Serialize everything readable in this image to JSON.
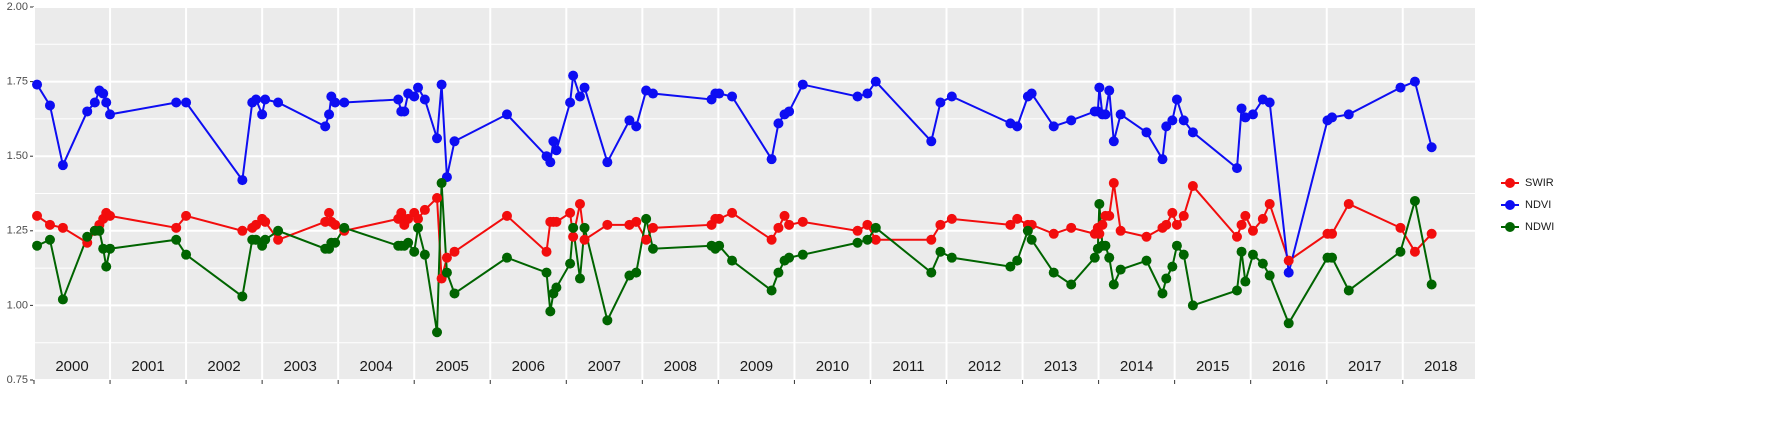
{
  "chart_data": {
    "type": "line",
    "x": [
      2000.04,
      2000.21,
      2000.38,
      2000.7,
      2000.8,
      2000.86,
      2000.91,
      2000.95,
      2001.0,
      2001.87,
      2002.0,
      2002.74,
      2002.87,
      2002.92,
      2003.0,
      2003.04,
      2003.21,
      2003.83,
      2003.88,
      2003.91,
      2003.96,
      2004.08,
      2004.79,
      2004.83,
      2004.87,
      2004.92,
      2005.0,
      2005.05,
      2005.14,
      2005.3,
      2005.36,
      2005.43,
      2005.53,
      2006.22,
      2006.74,
      2006.79,
      2006.83,
      2006.87,
      2007.05,
      2007.09,
      2007.18,
      2007.24,
      2007.54,
      2007.83,
      2007.92,
      2008.05,
      2008.14,
      2008.91,
      2008.96,
      2009.01,
      2009.18,
      2009.7,
      2009.79,
      2009.87,
      2009.93,
      2010.11,
      2010.83,
      2010.96,
      2011.07,
      2011.8,
      2011.92,
      2012.07,
      2012.84,
      2012.93,
      2013.07,
      2013.12,
      2013.41,
      2013.64,
      2013.95,
      2013.99,
      2014.01,
      2014.05,
      2014.09,
      2014.14,
      2014.2,
      2014.29,
      2014.63,
      2014.84,
      2014.89,
      2014.97,
      2015.03,
      2015.12,
      2015.24,
      2015.82,
      2015.88,
      2015.93,
      2016.03,
      2016.16,
      2016.25,
      2016.5,
      2017.01,
      2017.07,
      2017.29,
      2017.97,
      2018.16,
      2018.38
    ],
    "series": [
      {
        "name": "SWIR",
        "color": "#f20d0d",
        "values": [
          1.3,
          1.27,
          1.26,
          1.21,
          1.25,
          1.27,
          1.29,
          1.31,
          1.3,
          1.26,
          1.3,
          1.25,
          1.26,
          1.27,
          1.29,
          1.28,
          1.22,
          1.28,
          1.31,
          1.28,
          1.27,
          1.25,
          1.29,
          1.31,
          1.27,
          1.29,
          1.31,
          1.29,
          1.32,
          1.36,
          1.09,
          1.16,
          1.18,
          1.3,
          1.18,
          1.28,
          1.28,
          1.28,
          1.31,
          1.23,
          1.34,
          1.22,
          1.27,
          1.27,
          1.28,
          1.22,
          1.26,
          1.27,
          1.29,
          1.29,
          1.31,
          1.22,
          1.26,
          1.3,
          1.27,
          1.28,
          1.25,
          1.27,
          1.22,
          1.22,
          1.27,
          1.29,
          1.27,
          1.29,
          1.27,
          1.27,
          1.24,
          1.26,
          1.24,
          1.26,
          1.24,
          1.27,
          1.3,
          1.3,
          1.41,
          1.25,
          1.23,
          1.26,
          1.27,
          1.31,
          1.27,
          1.3,
          1.4,
          1.23,
          1.27,
          1.3,
          1.25,
          1.29,
          1.34,
          1.15,
          1.24,
          1.24,
          1.34,
          1.26,
          1.18,
          1.24
        ]
      },
      {
        "name": "NDVI",
        "color": "#0d0df2",
        "values": [
          1.74,
          1.67,
          1.47,
          1.65,
          1.68,
          1.72,
          1.71,
          1.68,
          1.64,
          1.68,
          1.68,
          1.42,
          1.68,
          1.69,
          1.64,
          1.69,
          1.68,
          1.6,
          1.64,
          1.7,
          1.68,
          1.68,
          1.69,
          1.65,
          1.65,
          1.71,
          1.7,
          1.73,
          1.69,
          1.56,
          1.74,
          1.43,
          1.55,
          1.64,
          1.5,
          1.48,
          1.55,
          1.52,
          1.68,
          1.77,
          1.7,
          1.73,
          1.48,
          1.62,
          1.6,
          1.72,
          1.71,
          1.69,
          1.71,
          1.71,
          1.7,
          1.49,
          1.61,
          1.64,
          1.65,
          1.74,
          1.7,
          1.71,
          1.75,
          1.55,
          1.68,
          1.7,
          1.61,
          1.6,
          1.7,
          1.71,
          1.6,
          1.62,
          1.65,
          1.65,
          1.73,
          1.64,
          1.64,
          1.72,
          1.55,
          1.64,
          1.58,
          1.49,
          1.6,
          1.62,
          1.69,
          1.62,
          1.58,
          1.46,
          1.66,
          1.63,
          1.64,
          1.69,
          1.68,
          1.11,
          1.62,
          1.63,
          1.64,
          1.73,
          1.75,
          1.53
        ]
      },
      {
        "name": "NDWI",
        "color": "#006400",
        "values": [
          1.2,
          1.22,
          1.02,
          1.23,
          1.25,
          1.25,
          1.19,
          1.13,
          1.19,
          1.22,
          1.17,
          1.03,
          1.22,
          1.22,
          1.2,
          1.22,
          1.25,
          1.19,
          1.19,
          1.21,
          1.21,
          1.26,
          1.2,
          1.2,
          1.2,
          1.21,
          1.18,
          1.26,
          1.17,
          0.91,
          1.41,
          1.11,
          1.04,
          1.16,
          1.11,
          0.98,
          1.04,
          1.06,
          1.14,
          1.26,
          1.09,
          1.26,
          0.95,
          1.1,
          1.11,
          1.29,
          1.19,
          1.2,
          1.19,
          1.2,
          1.15,
          1.05,
          1.11,
          1.15,
          1.16,
          1.17,
          1.21,
          1.22,
          1.26,
          1.11,
          1.18,
          1.16,
          1.13,
          1.15,
          1.25,
          1.22,
          1.11,
          1.07,
          1.16,
          1.19,
          1.34,
          1.2,
          1.2,
          1.16,
          1.07,
          1.12,
          1.15,
          1.04,
          1.09,
          1.13,
          1.2,
          1.17,
          1.0,
          1.05,
          1.18,
          1.08,
          1.17,
          1.14,
          1.1,
          0.94,
          1.16,
          1.16,
          1.05,
          1.18,
          1.35,
          1.07
        ]
      }
    ],
    "xlim": [
      2000,
      2018.95
    ],
    "xticks": [
      2000,
      2001,
      2002,
      2003,
      2004,
      2005,
      2006,
      2007,
      2008,
      2009,
      2010,
      2011,
      2012,
      2013,
      2014,
      2015,
      2016,
      2017,
      2018
    ],
    "year_labels": [
      2000,
      2001,
      2002,
      2003,
      2004,
      2005,
      2006,
      2007,
      2008,
      2009,
      2010,
      2011,
      2012,
      2013,
      2014,
      2015,
      2016,
      2017,
      2018
    ],
    "ylim": [
      0.75,
      2.0
    ],
    "yticks": [
      {
        "value": 0.75,
        "label": "0.75"
      },
      {
        "value": 1,
        "label": "1.00"
      },
      {
        "value": 1.25,
        "label": "1.25"
      },
      {
        "value": 1.5,
        "label": "1.50"
      },
      {
        "value": 1.75,
        "label": "1.75"
      },
      {
        "value": 2,
        "label": "2.00"
      }
    ],
    "grid": true,
    "legend": "right"
  }
}
